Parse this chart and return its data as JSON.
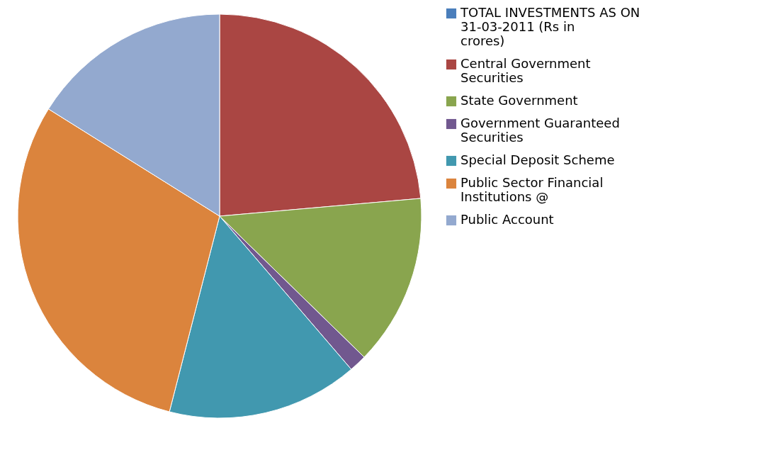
{
  "chart_data": {
    "type": "pie",
    "categories": [
      "TOTAL INVESTMENTS AS ON 31-03-2011 (Rs in crores)",
      "Central Government Securities",
      "State Government",
      "Government Guaranteed Securities",
      "Special Deposit Scheme",
      "Public Sector Financial Institutions @",
      "Public Account"
    ],
    "values": [
      0,
      23.6,
      13.7,
      1.4,
      15.3,
      29.9,
      16.1
    ],
    "colors": [
      "#4a7ebb",
      "#aa4643",
      "#89a54e",
      "#71588f",
      "#4198af",
      "#db843d",
      "#93a9cf"
    ],
    "legend": "right"
  }
}
